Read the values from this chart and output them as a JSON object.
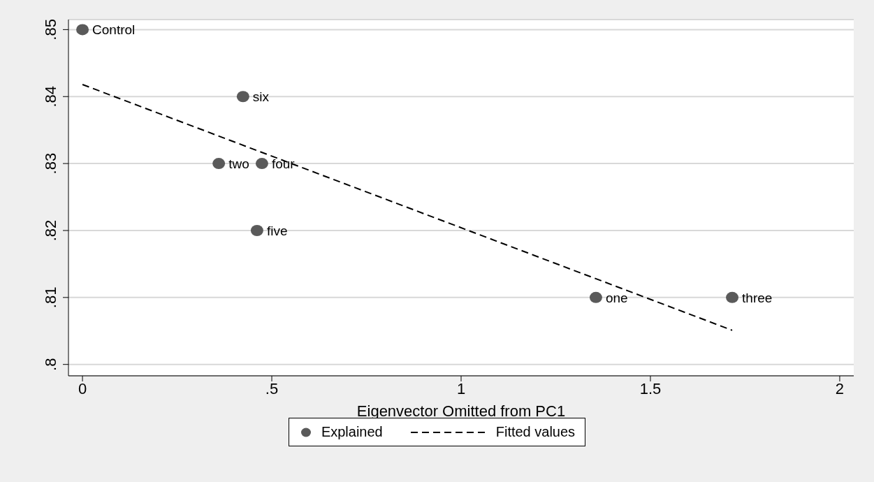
{
  "chart_data": {
    "type": "scatter",
    "xlabel": "Eigenvector Omitted from PC1",
    "xlim": [
      -0.037,
      2.037
    ],
    "xticks": [
      0,
      {
        "value": 0.5,
        "label": ".5"
      },
      1,
      1.5,
      2
    ],
    "ylim": [
      0.7983,
      0.8515
    ],
    "yticks": [
      {
        "value": 0.8,
        "label": ".8"
      },
      {
        "value": 0.81,
        "label": ".81"
      },
      {
        "value": 0.82,
        "label": ".82"
      },
      {
        "value": 0.83,
        "label": ".83"
      },
      {
        "value": 0.84,
        "label": ".84"
      },
      {
        "value": 0.85,
        "label": ".85"
      }
    ],
    "grid": "y",
    "legend": "bottom",
    "marker": "circle",
    "series": [
      {
        "name": "Explained",
        "color": "#5a5a5a",
        "x": [
          0,
          0.424,
          0.36,
          0.474,
          0.461,
          1.356,
          1.716
        ],
        "values": [
          0.85,
          0.84,
          0.83,
          0.83,
          0.82,
          0.81,
          0.81
        ]
      },
      {
        "name": "Fitted values",
        "type": "line",
        "color": "#000000",
        "line_style": "dashed",
        "marker": "none",
        "x": [
          0,
          1.716
        ],
        "values": [
          0.8418,
          0.8051
        ]
      }
    ],
    "annotations": [
      {
        "text": "Control",
        "x": 0,
        "y": 0.85
      },
      {
        "text": "six",
        "x": 0.424,
        "y": 0.84
      },
      {
        "text": "two",
        "x": 0.36,
        "y": 0.83
      },
      {
        "text": "four",
        "x": 0.474,
        "y": 0.83
      },
      {
        "text": "five",
        "x": 0.461,
        "y": 0.82
      },
      {
        "text": "one",
        "x": 1.356,
        "y": 0.81
      },
      {
        "text": "three",
        "x": 1.716,
        "y": 0.81
      }
    ]
  }
}
